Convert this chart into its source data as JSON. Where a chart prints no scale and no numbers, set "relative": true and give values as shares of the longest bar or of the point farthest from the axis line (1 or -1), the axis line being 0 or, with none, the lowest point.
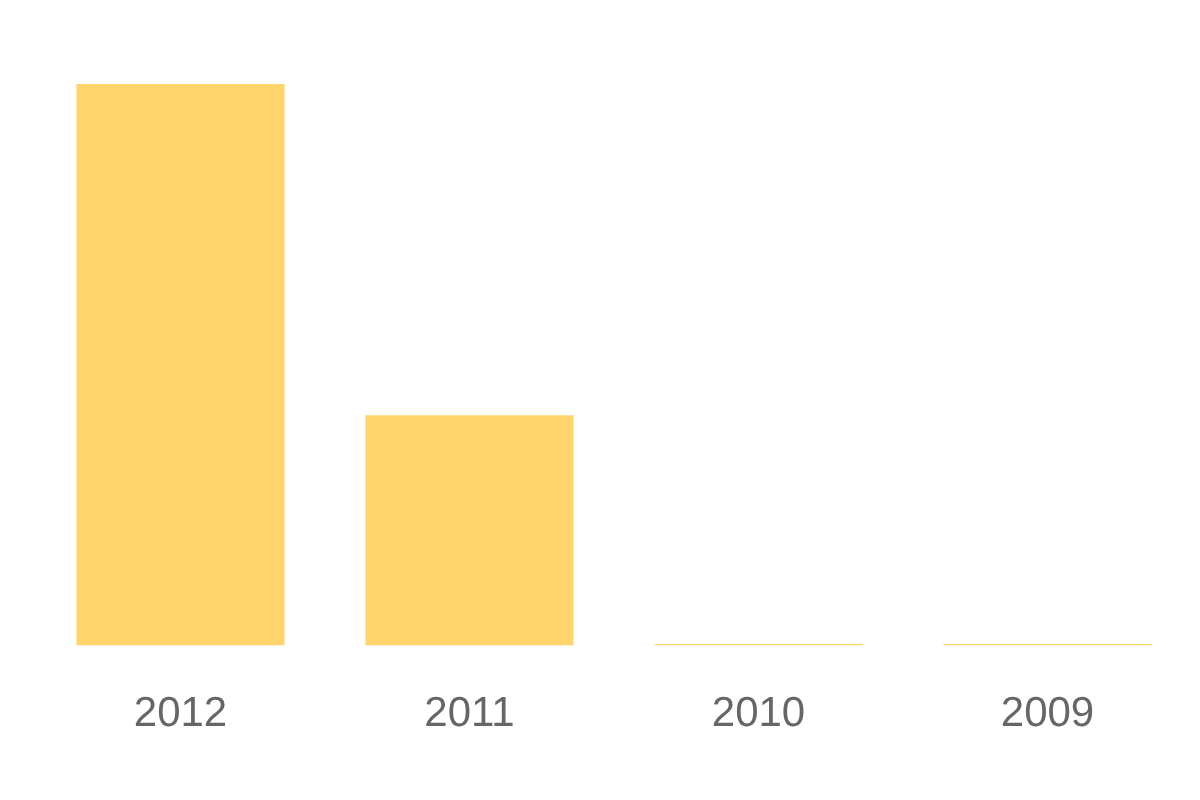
{
  "chart_data": {
    "type": "bar",
    "relative": true,
    "categories": [
      "2012",
      "2011",
      "2010",
      "2009"
    ],
    "values": [
      1,
      0.41,
      0.003,
      0.003
    ],
    "color": "#fed46b",
    "grid": false,
    "legend": false
  }
}
